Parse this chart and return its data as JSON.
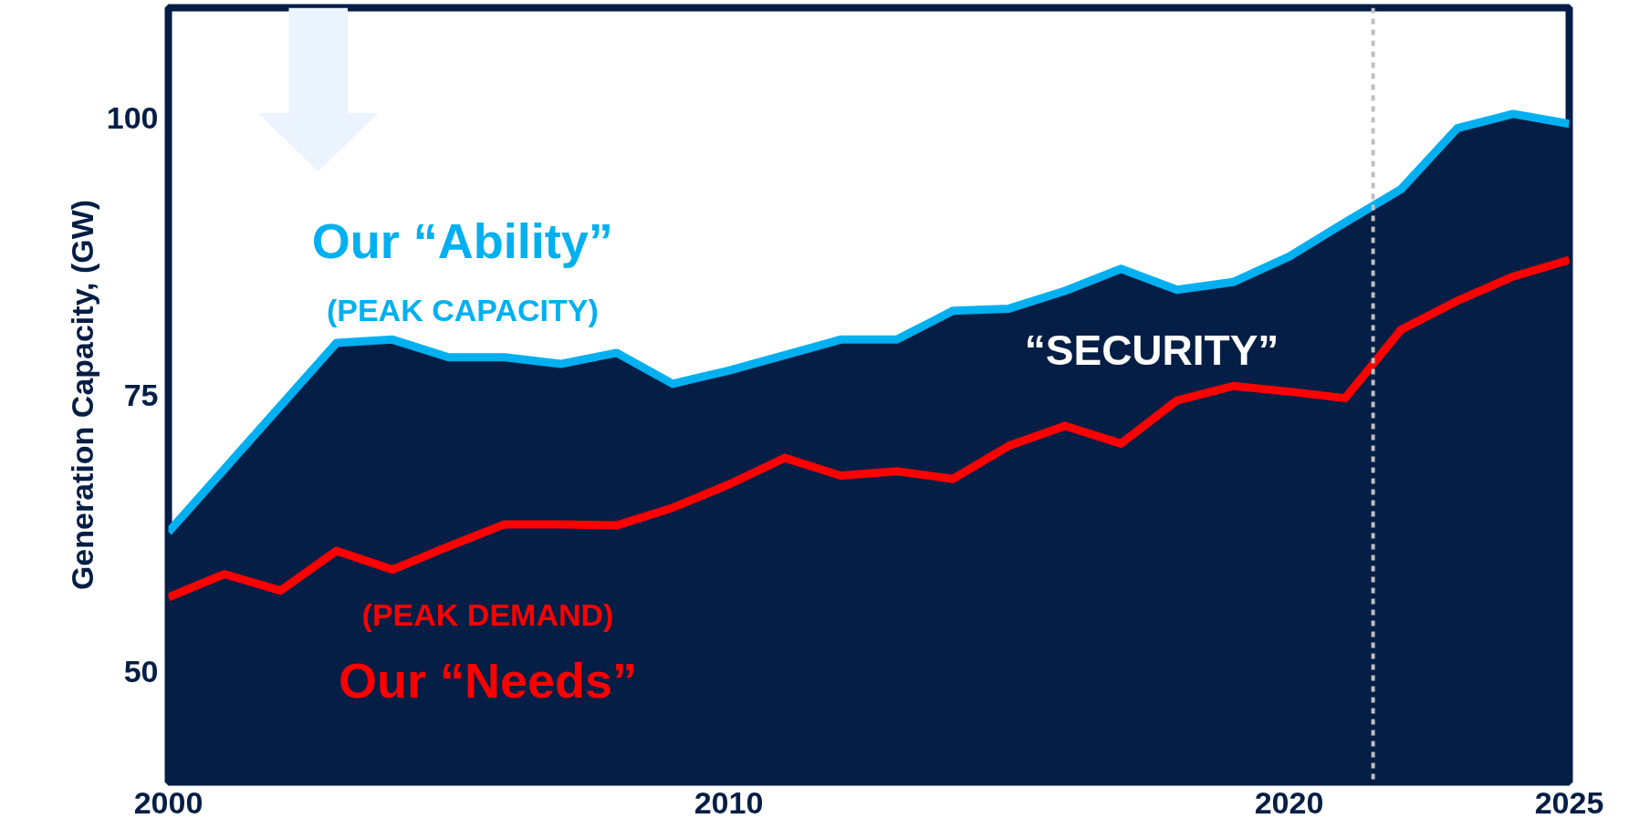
{
  "chart_data": {
    "type": "area",
    "ylabel": "Generation Capacity, (GW)",
    "xlim": [
      2000,
      2025
    ],
    "ylim": [
      40,
      110
    ],
    "xticks": [
      2000,
      2010,
      2020,
      2025
    ],
    "yticks": [
      50,
      75,
      100
    ],
    "grid": false,
    "line_style": "solid",
    "marker": "none",
    "series": [
      {
        "color": "#00b0f0",
        "x": [
          2000,
          2003,
          2004,
          2005,
          2006,
          2007,
          2008,
          2009,
          2010,
          2011,
          2012,
          2013,
          2014,
          2015,
          2016,
          2017,
          2018,
          2019,
          2020,
          2021,
          2022,
          2023,
          2024,
          2025
        ],
        "values": [
          62.6,
          79.7,
          80.0,
          78.4,
          78.4,
          77.8,
          78.8,
          76.0,
          77.2,
          78.6,
          80.0,
          80.0,
          82.6,
          82.8,
          84.4,
          86.4,
          84.5,
          85.2,
          87.5,
          90.6,
          93.6,
          99.1,
          100.4,
          99.5
        ]
      },
      {
        "type": "line",
        "color": "#ff0000",
        "x": [
          2000,
          2001,
          2002,
          2003,
          2004,
          2005,
          2006,
          2007,
          2008,
          2009,
          2010,
          2011,
          2012,
          2013,
          2014,
          2015,
          2016,
          2017,
          2018,
          2019,
          2020,
          2021,
          2022,
          2023,
          2024,
          2025
        ],
        "values": [
          56.7,
          58.8,
          57.3,
          60.9,
          59.2,
          61.3,
          63.3,
          63.3,
          63.2,
          64.8,
          66.9,
          69.3,
          67.7,
          68.1,
          67.4,
          70.4,
          72.2,
          70.6,
          74.5,
          75.8,
          75.3,
          74.7,
          80.9,
          83.5,
          85.7,
          87.2
        ]
      }
    ],
    "ref_lines": [
      {
        "axis": "x",
        "value": 2021.5,
        "label": null,
        "color": "#bfbfbf",
        "line_style": "dashed"
      }
    ],
    "annotations": [
      "Our “Ability”",
      "(PEAK CAPACITY)",
      "“SECURITY”",
      "(PEAK DEMAND)",
      "Our “Needs”"
    ]
  }
}
